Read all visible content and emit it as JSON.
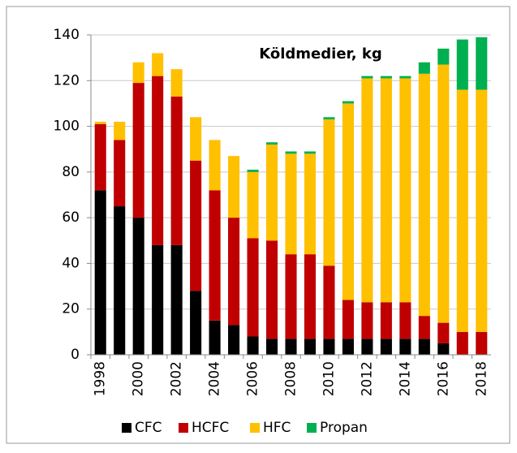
{
  "chart_data": {
    "type": "stacked_bar",
    "title": "Köldmedier, kg",
    "categories": [
      "1998",
      null,
      "2000",
      null,
      "2002",
      null,
      "2004",
      null,
      "2006",
      null,
      "2008",
      null,
      "2010",
      null,
      "2012",
      null,
      "2014",
      null,
      "2016",
      null,
      "2018"
    ],
    "series": [
      {
        "name": "CFC",
        "color": "#000000",
        "values": [
          72,
          65,
          60,
          48,
          48,
          28,
          15,
          13,
          8,
          7,
          7,
          7,
          7,
          7,
          7,
          7,
          7,
          7,
          5,
          0,
          0
        ]
      },
      {
        "name": "HCFC",
        "color": "#c00000",
        "values": [
          29,
          29,
          59,
          74,
          65,
          57,
          57,
          47,
          43,
          43,
          37,
          37,
          32,
          17,
          16,
          16,
          16,
          10,
          9,
          10,
          10
        ]
      },
      {
        "name": "HFC",
        "color": "#ffc000",
        "values": [
          1,
          8,
          9,
          10,
          12,
          19,
          22,
          27,
          29,
          42,
          44,
          44,
          64,
          86,
          98,
          98,
          98,
          106,
          113,
          106,
          106
        ]
      },
      {
        "name": "Propan",
        "color": "#00b050",
        "values": [
          0,
          0,
          0,
          0,
          0,
          0,
          0,
          0,
          1,
          1,
          1,
          1,
          1,
          1,
          1,
          1,
          1,
          5,
          7,
          22,
          23
        ]
      }
    ],
    "ylim": [
      0,
      140
    ],
    "yticks": [
      0,
      20,
      40,
      60,
      80,
      100,
      120,
      140
    ],
    "grid": true,
    "legend": "bottom"
  }
}
